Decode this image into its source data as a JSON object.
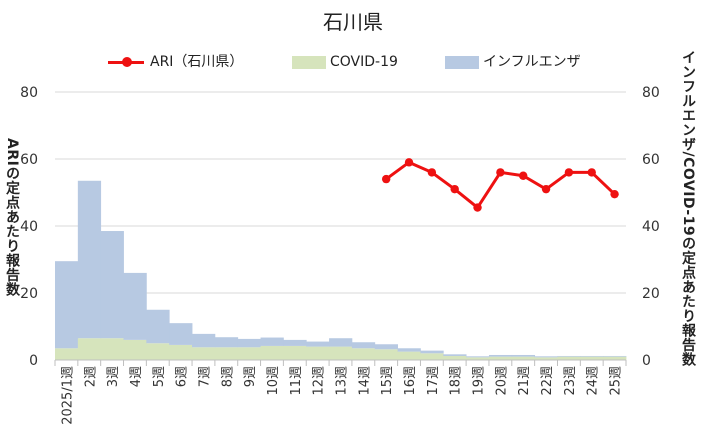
{
  "chart_data": {
    "type": "bar+line",
    "title": "石川県",
    "legend": {
      "ari": "ARI（石川県）",
      "covid": "COVID-19",
      "flu": "インフルエンザ"
    },
    "ylabel_left": "ARIの定点あたり報告数",
    "ylabel_right": "インフルエンザ/COVID-19の定点あたり報告数",
    "ylim": [
      0,
      80
    ],
    "yticks": [
      "0",
      "20",
      "40",
      "60",
      "80"
    ],
    "categories": [
      "2025/1週",
      "2週",
      "3週",
      "4週",
      "5週",
      "6週",
      "7週",
      "8週",
      "9週",
      "10週",
      "11週",
      "12週",
      "13週",
      "14週",
      "15週",
      "16週",
      "17週",
      "18週",
      "19週",
      "20週",
      "21週",
      "22週",
      "23週",
      "24週",
      "25週"
    ],
    "series": [
      {
        "name": "インフルエンザ",
        "axis": "right",
        "style": "stacked-area",
        "values": [
          26,
          47,
          32,
          20,
          10,
          6.5,
          4,
          3,
          2.5,
          2.5,
          1.8,
          1.5,
          2.5,
          1.8,
          1.5,
          1,
          0.8,
          0.5,
          0.3,
          0.5,
          0.5,
          0.3,
          0.2,
          0.2,
          0.2
        ]
      },
      {
        "name": "COVID-19",
        "axis": "right",
        "style": "stacked-area",
        "values": [
          3.5,
          6.5,
          6.5,
          6,
          5,
          4.5,
          3.8,
          3.8,
          3.8,
          4.2,
          4.2,
          4,
          4,
          3.5,
          3.2,
          2.5,
          2,
          1.2,
          0.8,
          1,
          1,
          0.8,
          1,
          1,
          1
        ]
      },
      {
        "name": "ARI（石川県）",
        "axis": "left",
        "style": "line",
        "values": [
          null,
          null,
          null,
          null,
          null,
          null,
          null,
          null,
          null,
          null,
          null,
          null,
          null,
          null,
          54,
          59,
          56,
          51,
          45.5,
          56,
          55,
          51,
          56,
          56,
          49.5
        ]
      }
    ],
    "colors": {
      "ari": "#ee1111",
      "covid": "#d6e4bc",
      "flu": "#b7c9e2",
      "grid": "#d9d9d9",
      "axis_text": "#333333"
    }
  }
}
